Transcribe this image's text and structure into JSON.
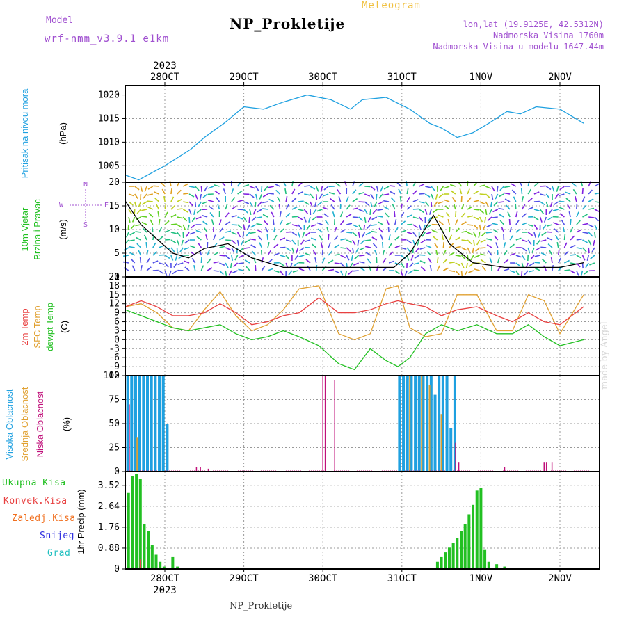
{
  "header": {
    "title": "NP_Prokletije",
    "subtitle": "Meteogram",
    "model_label": "Model",
    "model_name": "wrf-nmm_v3.9.1 e1km",
    "info_lines": [
      "lon,lat (19.9125E, 42.5312N)",
      "Nadmorska Visina 1760m",
      "Nadmorska Visina u modelu 1647.44m"
    ]
  },
  "footer": {
    "station": "NP_Prokletije",
    "credit": "made by Angel"
  },
  "colors": {
    "pressure": "#1ea0e0",
    "temp2m": "#e84040",
    "sfc": "#e0a030",
    "dewpt": "#22c022",
    "high_cloud": "#1ea0e0",
    "mid_cloud": "#e0a030",
    "low_cloud": "#c0107a",
    "total_precip": "#22c022",
    "conv_precip": "#e84040",
    "frz_precip": "#f07020",
    "snow": "#3030e0",
    "grad": "#20c0c0"
  },
  "chart_data": [
    {
      "type": "line",
      "panel": "pressure",
      "ylabel_lines": [
        "Pritisak na nivou mora",
        "(hPa)"
      ],
      "ylim": [
        1001.5,
        1022
      ],
      "yticks": [
        1005,
        1010,
        1015,
        1020
      ],
      "x_days": [
        0,
        0.17,
        0.5,
        0.83,
        1.0,
        1.25,
        1.5,
        1.75,
        2.0,
        2.3,
        2.6,
        2.85,
        3.0,
        3.3,
        3.6,
        3.85,
        4.0,
        4.2,
        4.4,
        4.6,
        4.83,
        5.0,
        5.2,
        5.5,
        5.8
      ],
      "series": [
        {
          "name": "Pritisak na nivou mora",
          "values": [
            1003,
            1002,
            1005,
            1008.5,
            1011,
            1014,
            1017.5,
            1017,
            1018.5,
            1020,
            1019,
            1017,
            1019,
            1019.5,
            1017,
            1014,
            1013,
            1011,
            1012,
            1014,
            1016.5,
            1016,
            1017.5,
            1017,
            1014
          ]
        }
      ]
    },
    {
      "type": "line",
      "panel": "wind",
      "ylabel_lines": [
        "10m Vjetar",
        "Brzina i Pravac",
        "(m/s)"
      ],
      "direction_legend": [
        "N",
        "W",
        "E",
        "S"
      ],
      "ylim": [
        0,
        20
      ],
      "yticks": [
        0,
        5,
        10,
        15,
        20
      ],
      "x_days": [
        0,
        0.2,
        0.4,
        0.6,
        0.8,
        1.0,
        1.3,
        1.6,
        2.0,
        2.5,
        3.0,
        3.4,
        3.6,
        3.75,
        3.9,
        4.1,
        4.4,
        4.8,
        5.2,
        5.5,
        5.8
      ],
      "series": [
        {
          "name": "Brzina",
          "values": [
            16,
            11,
            8,
            5,
            4,
            6,
            7,
            4,
            2,
            2,
            2,
            2,
            5,
            9,
            13,
            7,
            3,
            2,
            2,
            2,
            3
          ]
        }
      ]
    },
    {
      "type": "line",
      "panel": "temperature",
      "ylabel_lines": [
        "2m Temp",
        "SFC Temp",
        "dewpt Temp",
        "(C)"
      ],
      "ylim": [
        -12,
        21
      ],
      "yticks": [
        -12,
        -9,
        -6,
        -3,
        0,
        3,
        6,
        9,
        12,
        15,
        18,
        21
      ],
      "x_days": [
        0,
        0.2,
        0.4,
        0.6,
        0.8,
        1.0,
        1.2,
        1.4,
        1.6,
        1.8,
        2.0,
        2.2,
        2.45,
        2.7,
        2.9,
        3.1,
        3.3,
        3.45,
        3.6,
        3.8,
        4.0,
        4.2,
        4.45,
        4.7,
        4.9,
        5.1,
        5.3,
        5.5,
        5.8
      ],
      "series": [
        {
          "name": "2m Temp",
          "values": [
            11,
            13,
            11,
            8,
            8,
            9,
            12,
            9,
            5,
            6,
            8,
            9,
            14,
            9,
            9,
            10,
            12,
            13,
            12,
            11,
            8,
            10,
            11,
            8,
            6,
            9,
            6,
            5,
            11
          ]
        },
        {
          "name": "SFC Temp",
          "values": [
            11,
            12,
            9,
            4,
            3,
            10,
            16,
            8,
            3,
            5,
            10,
            17,
            18,
            2,
            0,
            2,
            17,
            18,
            4,
            1,
            2,
            15,
            15,
            3,
            3,
            15,
            13,
            2,
            15
          ]
        },
        {
          "name": "dewpt Temp",
          "values": [
            10,
            8,
            6,
            4,
            3,
            4,
            5,
            2,
            0,
            1,
            3,
            1,
            -2,
            -8,
            -10,
            -3,
            -7,
            -9,
            -6,
            2,
            5,
            3,
            5,
            2,
            2,
            5,
            1,
            -2,
            0
          ]
        }
      ]
    },
    {
      "type": "bar",
      "panel": "clouds",
      "ylabel_lines": [
        "Visoka Oblacnost",
        "Srednja Oblacnost",
        "Niska Oblacnost",
        "(%)"
      ],
      "ylim": [
        0,
        100
      ],
      "yticks": [
        0,
        25,
        50,
        75,
        100
      ],
      "series": [
        {
          "name": "Visoka Oblacnost",
          "x_days": [
            0.03,
            0.08,
            0.13,
            0.18,
            0.23,
            0.28,
            0.33,
            0.38,
            0.43,
            0.48,
            0.53,
            3.47,
            3.52,
            3.57,
            3.62,
            3.67,
            3.72,
            3.77,
            3.82,
            3.87,
            3.92,
            3.97,
            4.02,
            4.07,
            4.12,
            4.17
          ],
          "values": [
            100,
            100,
            100,
            100,
            100,
            100,
            100,
            100,
            100,
            100,
            50,
            100,
            100,
            100,
            100,
            100,
            100,
            100,
            100,
            100,
            80,
            100,
            100,
            100,
            45,
            100
          ]
        },
        {
          "name": "Srednja Oblacnost",
          "x_days": [
            0.15,
            3.6,
            3.75,
            3.85,
            4.0
          ],
          "values": [
            36,
            100,
            100,
            90,
            60
          ]
        },
        {
          "name": "Niska Oblacnost",
          "x_days": [
            0.05,
            0.9,
            0.95,
            1.05,
            2.5,
            2.53,
            2.65,
            4.18,
            4.22,
            4.8,
            5.3,
            5.33,
            5.4
          ],
          "values": [
            70,
            5,
            5,
            3,
            100,
            100,
            95,
            30,
            10,
            5,
            10,
            10,
            10
          ]
        }
      ]
    },
    {
      "type": "bar",
      "panel": "precipitation",
      "ylabel_lines": [
        "1hr Precip (mm)"
      ],
      "legend": [
        "Ukupna Kisa",
        "Konvek.Kisa",
        "Zaledj.Kisa",
        "Snijeg",
        "Grad"
      ],
      "ylim": [
        0,
        4.1
      ],
      "yticks": [
        0,
        0.88,
        1.76,
        2.64,
        3.52
      ],
      "series": [
        {
          "name": "Ukupna Kisa",
          "x_days": [
            0.04,
            0.09,
            0.14,
            0.19,
            0.24,
            0.29,
            0.34,
            0.39,
            0.44,
            0.49,
            0.6,
            0.66,
            3.95,
            4.0,
            4.05,
            4.1,
            4.15,
            4.2,
            4.25,
            4.3,
            4.35,
            4.4,
            4.45,
            4.5,
            4.55,
            4.6,
            4.7,
            4.8
          ],
          "values": [
            3.2,
            3.9,
            4.0,
            3.8,
            1.9,
            1.6,
            1.0,
            0.6,
            0.3,
            0.1,
            0.5,
            0.1,
            0.3,
            0.5,
            0.7,
            0.9,
            1.1,
            1.3,
            1.6,
            1.9,
            2.3,
            2.7,
            3.3,
            3.4,
            0.8,
            0.3,
            0.2,
            0.1
          ]
        },
        {
          "name": "Konvek.Kisa",
          "x_days": [
            0.19
          ],
          "values": [
            0.4
          ]
        }
      ]
    }
  ],
  "x_axis": {
    "year": "2023",
    "day_labels": [
      "28OCT",
      "29OCT",
      "30OCT",
      "31OCT",
      "1NOV",
      "2NOV"
    ]
  }
}
